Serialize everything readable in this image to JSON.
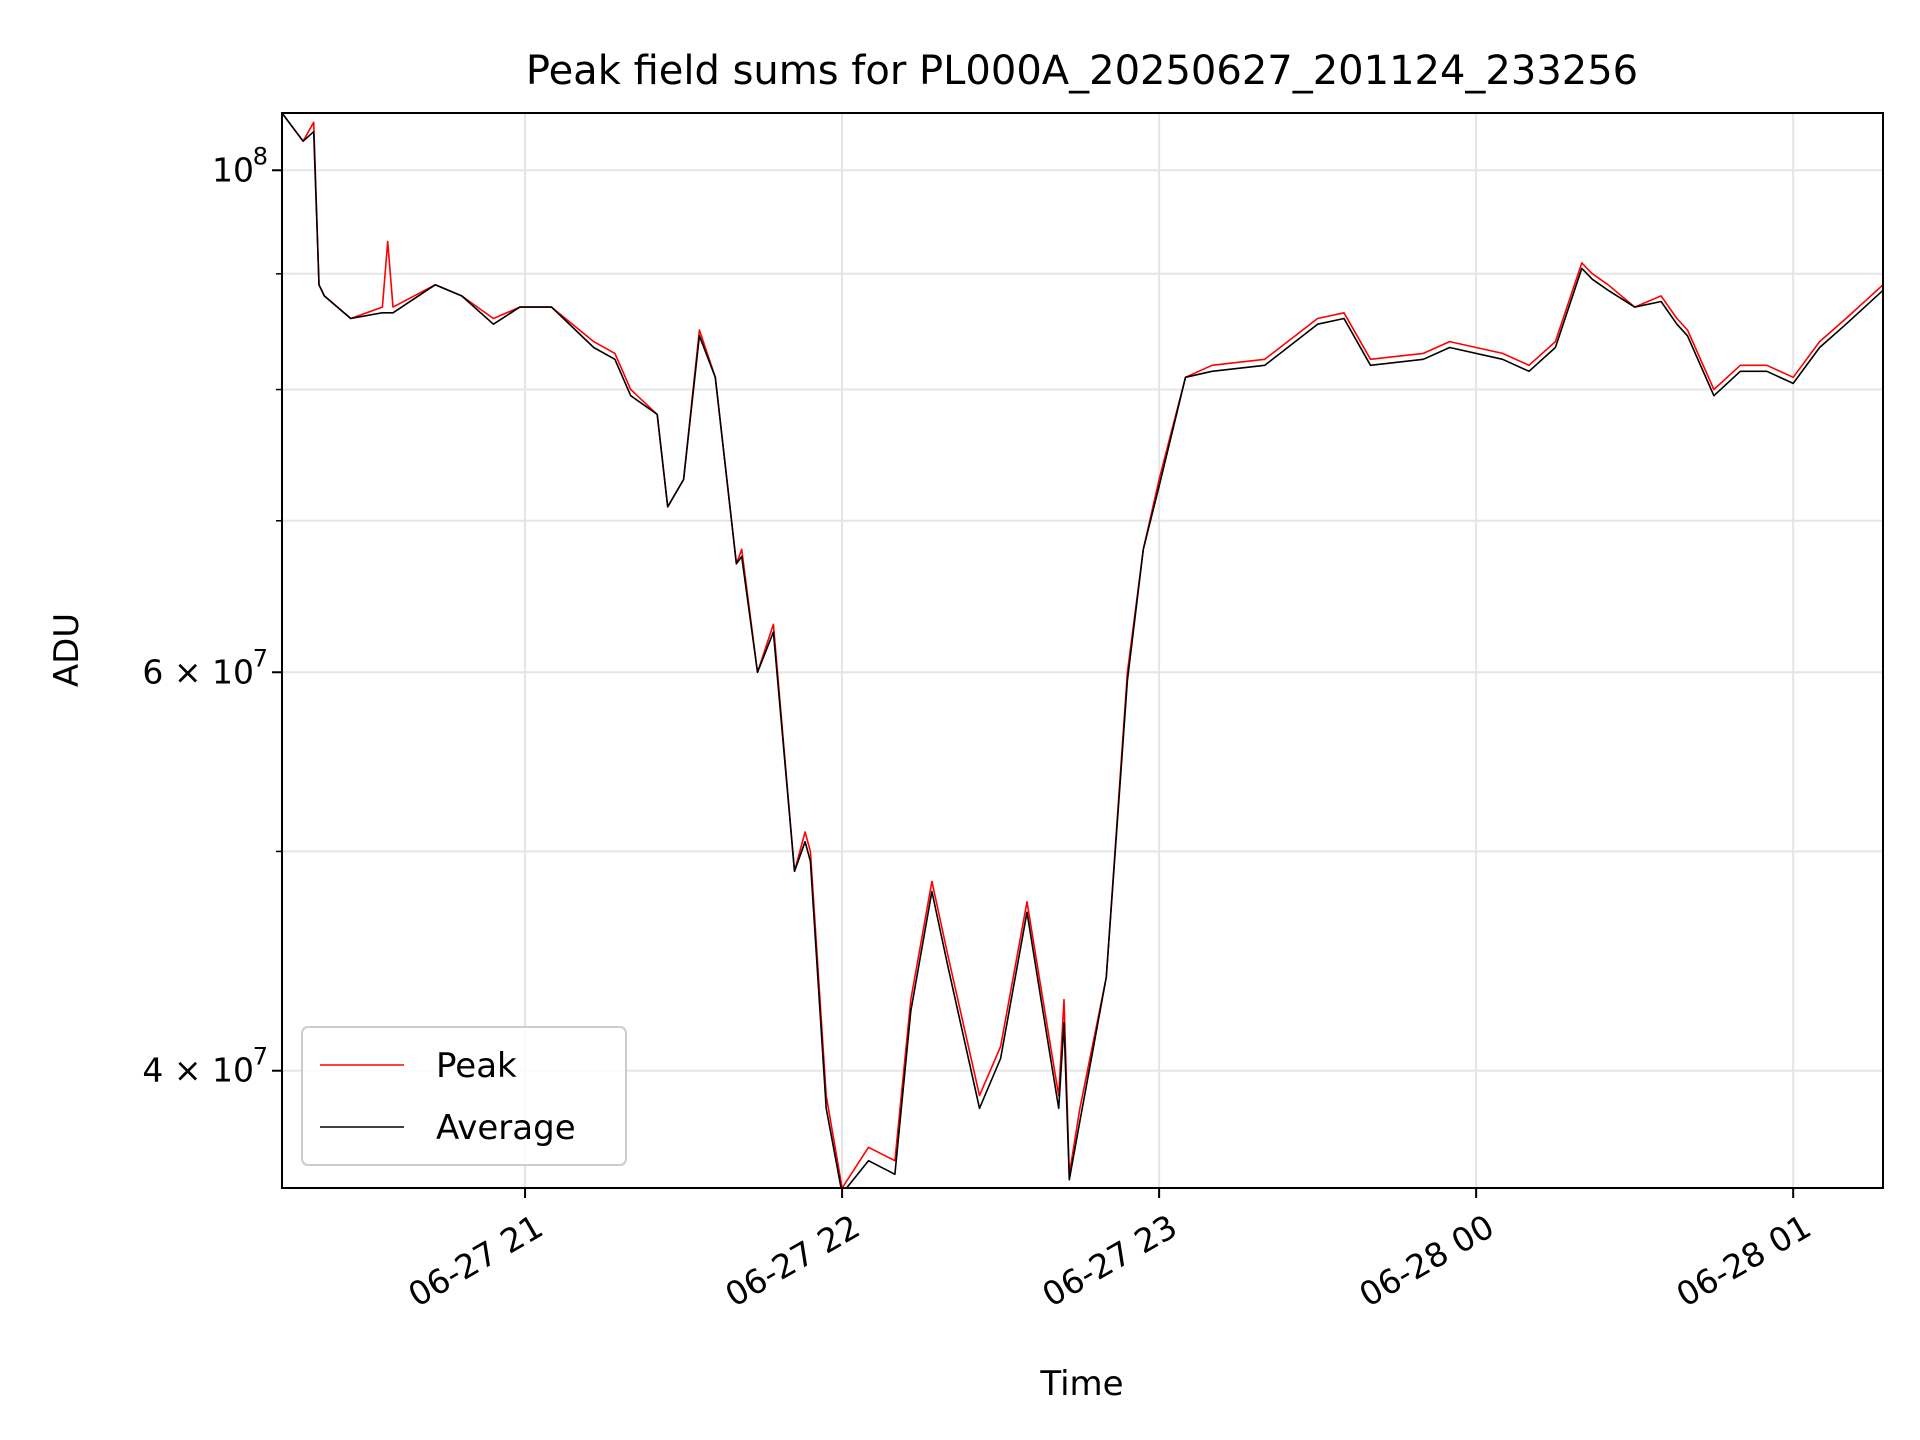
{
  "chart_data": {
    "type": "line",
    "title": "Peak field sums for PL000A_20250627_201124_233256",
    "xlabel": "Time",
    "ylabel": "ADU",
    "yscale": "log",
    "grid": true,
    "legend_position": "lower-left",
    "xlim": [
      "2025-06-27 20:14",
      "2025-06-28 01:17"
    ],
    "ylim": [
      35500000,
      106000000
    ],
    "x_ticks": [
      {
        "value": "2025-06-27 21:00",
        "label": "06-27 21"
      },
      {
        "value": "2025-06-27 22:00",
        "label": "06-27 22"
      },
      {
        "value": "2025-06-27 23:00",
        "label": "06-27 23"
      },
      {
        "value": "2025-06-28 00:00",
        "label": "06-28 00"
      },
      {
        "value": "2025-06-28 01:00",
        "label": "06-28 01"
      }
    ],
    "y_ticks": [
      {
        "value": 40000000,
        "label": "4 × 10",
        "exp": "7"
      },
      {
        "value": 60000000,
        "label": "6 × 10",
        "exp": "7"
      },
      {
        "value": 100000000,
        "label": "10",
        "exp": "8"
      }
    ],
    "y_minor_ticks": [
      50000000,
      70000000,
      80000000,
      90000000
    ],
    "series": [
      {
        "name": "Peak",
        "color": "#ff0000",
        "x": [
          "2025-06-27 20:14",
          "2025-06-27 20:18",
          "2025-06-27 20:20",
          "2025-06-27 20:21",
          "2025-06-27 20:22",
          "2025-06-27 20:27",
          "2025-06-27 20:33",
          "2025-06-27 20:34",
          "2025-06-27 20:35",
          "2025-06-27 20:43",
          "2025-06-27 20:48",
          "2025-06-27 20:54",
          "2025-06-27 20:59",
          "2025-06-27 21:05",
          "2025-06-27 21:13",
          "2025-06-27 21:17",
          "2025-06-27 21:20",
          "2025-06-27 21:25",
          "2025-06-27 21:27",
          "2025-06-27 21:30",
          "2025-06-27 21:33",
          "2025-06-27 21:36",
          "2025-06-27 21:40",
          "2025-06-27 21:41",
          "2025-06-27 21:44",
          "2025-06-27 21:47",
          "2025-06-27 21:51",
          "2025-06-27 21:53",
          "2025-06-27 21:54",
          "2025-06-27 21:57",
          "2025-06-27 22:00",
          "2025-06-27 22:05",
          "2025-06-27 22:10",
          "2025-06-27 22:13",
          "2025-06-27 22:17",
          "2025-06-27 22:20",
          "2025-06-27 22:26",
          "2025-06-27 22:30",
          "2025-06-27 22:35",
          "2025-06-27 22:38",
          "2025-06-27 22:41",
          "2025-06-27 22:42",
          "2025-06-27 22:43",
          "2025-06-27 22:45",
          "2025-06-27 22:50",
          "2025-06-27 22:54",
          "2025-06-27 22:57",
          "2025-06-27 23:00",
          "2025-06-27 23:05",
          "2025-06-27 23:10",
          "2025-06-27 23:20",
          "2025-06-27 23:30",
          "2025-06-27 23:35",
          "2025-06-27 23:40",
          "2025-06-27 23:50",
          "2025-06-27 23:55",
          "2025-06-28 00:05",
          "2025-06-28 00:10",
          "2025-06-28 00:15",
          "2025-06-28 00:20",
          "2025-06-28 00:22",
          "2025-06-28 00:25",
          "2025-06-28 00:30",
          "2025-06-28 00:35",
          "2025-06-28 00:38",
          "2025-06-28 00:40",
          "2025-06-28 00:45",
          "2025-06-28 00:50",
          "2025-06-28 00:55",
          "2025-06-28 01:00",
          "2025-06-28 01:05",
          "2025-06-28 01:10",
          "2025-06-28 01:17"
        ],
        "values": [
          106000000,
          103000000,
          105000000,
          89000000,
          88000000,
          86000000,
          87000000,
          93000000,
          87000000,
          89000000,
          88000000,
          86000000,
          87000000,
          87000000,
          84000000,
          83000000,
          80000000,
          78000000,
          71000000,
          73000000,
          85000000,
          81000000,
          67000000,
          68000000,
          60000000,
          63000000,
          49000000,
          51000000,
          50000000,
          39000000,
          35500000,
          37000000,
          36500000,
          43000000,
          48500000,
          45000000,
          39000000,
          41000000,
          47500000,
          43000000,
          39000000,
          43000000,
          36000000,
          38500000,
          44000000,
          60000000,
          68000000,
          73000000,
          81000000,
          82000000,
          82500000,
          86000000,
          86500000,
          82500000,
          83000000,
          84000000,
          83000000,
          82000000,
          84000000,
          91000000,
          90000000,
          89000000,
          87000000,
          88000000,
          86000000,
          85000000,
          80000000,
          82000000,
          82000000,
          81000000,
          84000000,
          86000000,
          89000000
        ]
      },
      {
        "name": "Average",
        "color": "#000000",
        "x": [
          "2025-06-27 20:14",
          "2025-06-27 20:18",
          "2025-06-27 20:20",
          "2025-06-27 20:21",
          "2025-06-27 20:22",
          "2025-06-27 20:27",
          "2025-06-27 20:33",
          "2025-06-27 20:34",
          "2025-06-27 20:35",
          "2025-06-27 20:43",
          "2025-06-27 20:48",
          "2025-06-27 20:54",
          "2025-06-27 20:59",
          "2025-06-27 21:05",
          "2025-06-27 21:13",
          "2025-06-27 21:17",
          "2025-06-27 21:20",
          "2025-06-27 21:25",
          "2025-06-27 21:27",
          "2025-06-27 21:30",
          "2025-06-27 21:33",
          "2025-06-27 21:36",
          "2025-06-27 21:40",
          "2025-06-27 21:41",
          "2025-06-27 21:44",
          "2025-06-27 21:47",
          "2025-06-27 21:51",
          "2025-06-27 21:53",
          "2025-06-27 21:54",
          "2025-06-27 21:57",
          "2025-06-27 22:00",
          "2025-06-27 22:05",
          "2025-06-27 22:10",
          "2025-06-27 22:13",
          "2025-06-27 22:17",
          "2025-06-27 22:20",
          "2025-06-27 22:26",
          "2025-06-27 22:30",
          "2025-06-27 22:35",
          "2025-06-27 22:38",
          "2025-06-27 22:41",
          "2025-06-27 22:42",
          "2025-06-27 22:43",
          "2025-06-27 22:45",
          "2025-06-27 22:50",
          "2025-06-27 22:54",
          "2025-06-27 22:57",
          "2025-06-27 23:00",
          "2025-06-27 23:05",
          "2025-06-27 23:10",
          "2025-06-27 23:20",
          "2025-06-27 23:30",
          "2025-06-27 23:35",
          "2025-06-27 23:40",
          "2025-06-27 23:50",
          "2025-06-27 23:55",
          "2025-06-28 00:05",
          "2025-06-28 00:10",
          "2025-06-28 00:15",
          "2025-06-28 00:20",
          "2025-06-28 00:22",
          "2025-06-28 00:25",
          "2025-06-28 00:30",
          "2025-06-28 00:35",
          "2025-06-28 00:38",
          "2025-06-28 00:40",
          "2025-06-28 00:45",
          "2025-06-28 00:50",
          "2025-06-28 00:55",
          "2025-06-28 01:00",
          "2025-06-28 01:05",
          "2025-06-28 01:10",
          "2025-06-28 01:17"
        ],
        "values": [
          106000000,
          103000000,
          104000000,
          89000000,
          88000000,
          86000000,
          86500000,
          86500000,
          86500000,
          89000000,
          88000000,
          85500000,
          87000000,
          87000000,
          83500000,
          82500000,
          79500000,
          78000000,
          71000000,
          73000000,
          84500000,
          81000000,
          67000000,
          67500000,
          60000000,
          62500000,
          49000000,
          50500000,
          49500000,
          38500000,
          35300000,
          36500000,
          36000000,
          42500000,
          48000000,
          44500000,
          38500000,
          40500000,
          47000000,
          42500000,
          38500000,
          42000000,
          35800000,
          38000000,
          44000000,
          59500000,
          68000000,
          72500000,
          81000000,
          81500000,
          82000000,
          85500000,
          86000000,
          82000000,
          82500000,
          83500000,
          82500000,
          81500000,
          83500000,
          90500000,
          89500000,
          88500000,
          87000000,
          87500000,
          85500000,
          84500000,
          79500000,
          81500000,
          81500000,
          80500000,
          83500000,
          85500000,
          88500000
        ]
      }
    ]
  }
}
